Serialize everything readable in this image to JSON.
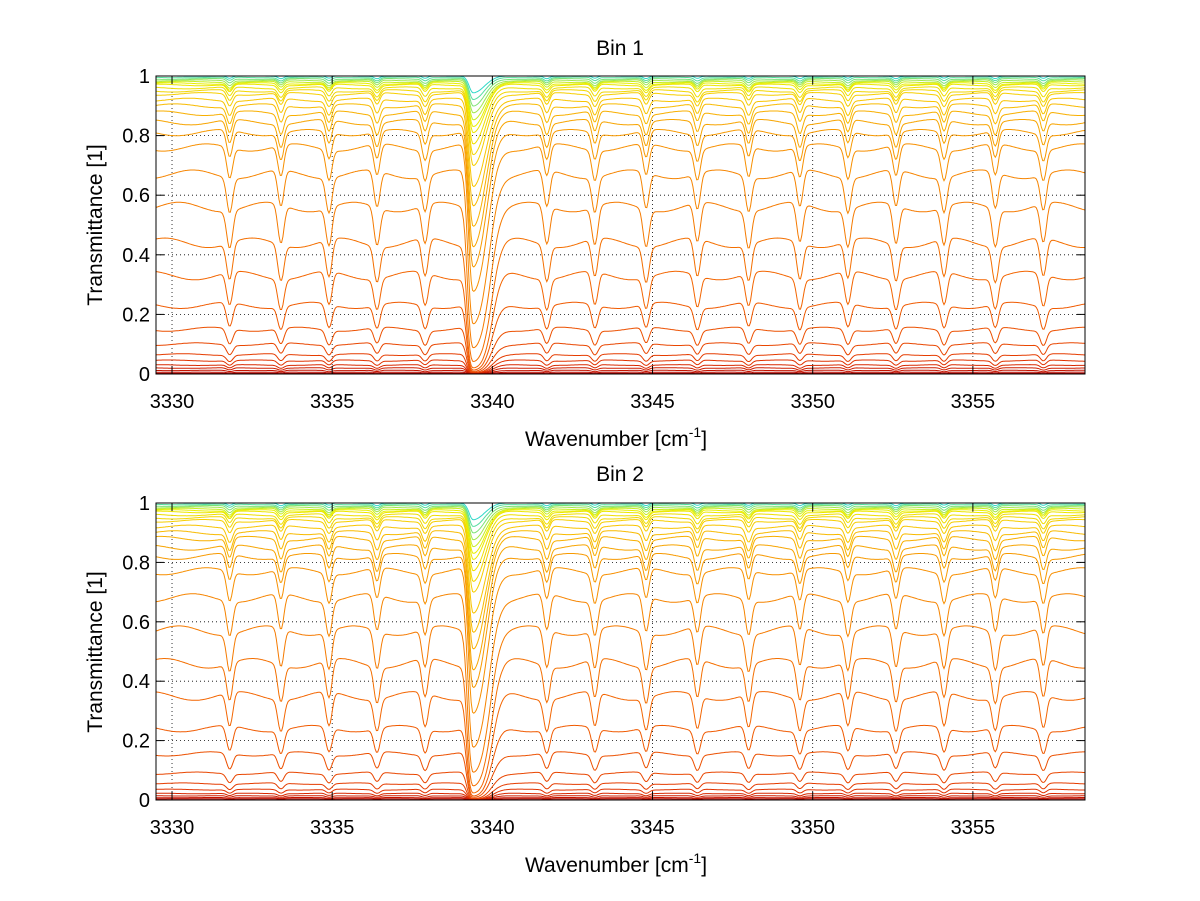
{
  "chart_data": [
    {
      "type": "line",
      "title": "Bin 1",
      "xlabel": "Wavenumber [cm",
      "xlabel_superscript": "-1",
      "xlabel_suffix": "]",
      "ylabel": "Transmittance [1]",
      "xlim": [
        3329.5,
        3358.5
      ],
      "ylim": [
        0,
        1
      ],
      "x_ticks": [
        3330,
        3335,
        3340,
        3345,
        3350,
        3355
      ],
      "x_tick_labels": [
        "3330",
        "3335",
        "3340",
        "3345",
        "3350",
        "3355"
      ],
      "y_ticks": [
        0,
        0.2,
        0.4,
        0.6,
        0.8,
        1
      ],
      "y_tick_labels": [
        "0",
        "0.2",
        "0.4",
        "0.6",
        "0.8",
        "1"
      ],
      "grid": true,
      "series_count": 30,
      "series_baselines": [
        1.0,
        0.995,
        0.99,
        0.985,
        0.98,
        0.975,
        0.97,
        0.96,
        0.95,
        0.94,
        0.92,
        0.9,
        0.875,
        0.845,
        0.81,
        0.76,
        0.67,
        0.56,
        0.44,
        0.33,
        0.23,
        0.15,
        0.1,
        0.065,
        0.045,
        0.03,
        0.02,
        0.012,
        0.006,
        0.002
      ],
      "colormap": [
        "#2fd8c8",
        "#e8f000",
        "#f8c800",
        "#f79400",
        "#f36100",
        "#e03000",
        "#b00000"
      ],
      "strong_absorption_x": 3339.4,
      "absorption_lines_x": [
        3331.8,
        3333.4,
        3334.9,
        3336.4,
        3337.9,
        3341.7,
        3343.2,
        3344.8,
        3346.4,
        3348.0,
        3349.6,
        3351.1,
        3352.6,
        3354.1,
        3355.7,
        3357.2
      ]
    },
    {
      "type": "line",
      "title": "Bin 2",
      "xlabel": "Wavenumber [cm",
      "xlabel_superscript": "-1",
      "xlabel_suffix": "]",
      "ylabel": "Transmittance [1]",
      "xlim": [
        3329.5,
        3358.5
      ],
      "ylim": [
        0,
        1
      ],
      "x_ticks": [
        3330,
        3335,
        3340,
        3345,
        3350,
        3355
      ],
      "x_tick_labels": [
        "3330",
        "3335",
        "3340",
        "3345",
        "3350",
        "3355"
      ],
      "y_ticks": [
        0,
        0.2,
        0.4,
        0.6,
        0.8,
        1
      ],
      "y_tick_labels": [
        "0",
        "0.2",
        "0.4",
        "0.6",
        "0.8",
        "1"
      ],
      "grid": true,
      "series_count": 30,
      "series_baselines": [
        1.0,
        0.995,
        0.99,
        0.985,
        0.98,
        0.975,
        0.97,
        0.96,
        0.95,
        0.94,
        0.92,
        0.9,
        0.88,
        0.85,
        0.82,
        0.77,
        0.68,
        0.57,
        0.46,
        0.35,
        0.24,
        0.155,
        0.09,
        0.055,
        0.035,
        0.022,
        0.014,
        0.008,
        0.004,
        0.001
      ],
      "colormap": [
        "#2fd8c8",
        "#e8f000",
        "#f8c800",
        "#f79400",
        "#f36100",
        "#e03000",
        "#b00000"
      ],
      "strong_absorption_x": 3339.4,
      "absorption_lines_x": [
        3331.8,
        3333.4,
        3334.9,
        3336.4,
        3337.9,
        3341.7,
        3343.2,
        3344.8,
        3346.4,
        3348.0,
        3349.6,
        3351.1,
        3352.6,
        3354.1,
        3355.7,
        3357.2
      ]
    }
  ]
}
